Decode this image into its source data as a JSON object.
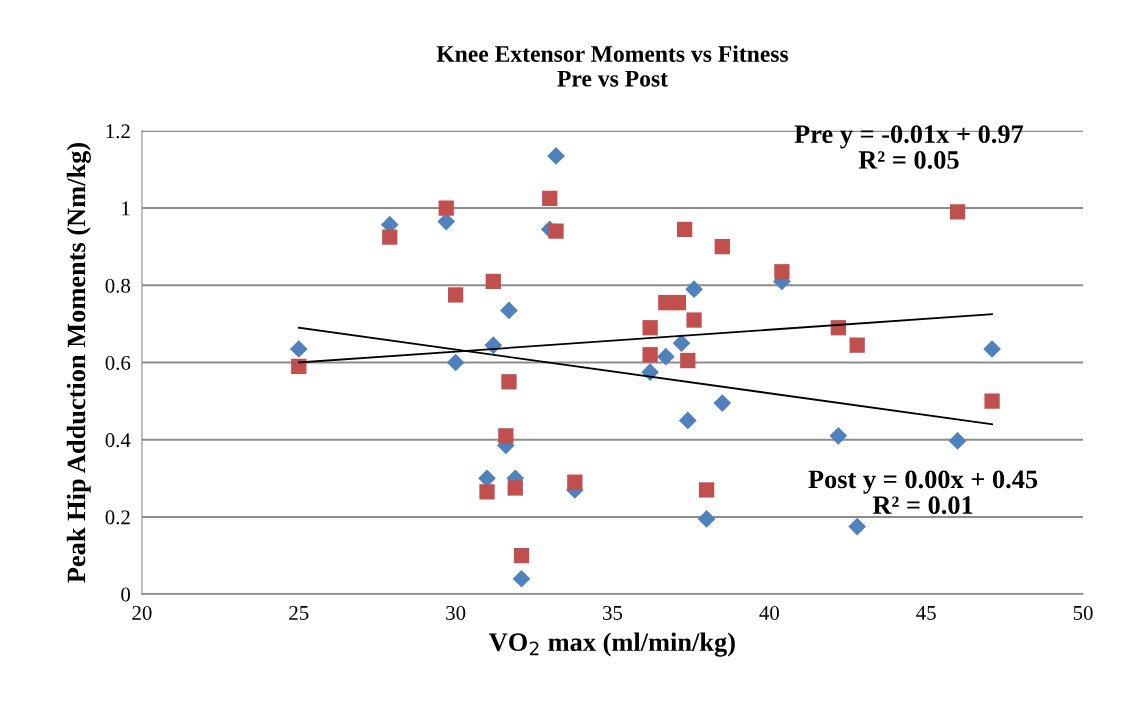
{
  "chart_data": {
    "type": "scatter",
    "title": "Knee Extensor Moments vs Fitness\nPre vs Post",
    "xlabel": "VO$_{2}$ max (ml/min/kg)",
    "ylabel": "Peak Hip Adduction Moments (Nm/kg)",
    "xlim": [
      20,
      50
    ],
    "xticks": [
      20,
      25,
      30,
      35,
      40,
      45,
      50
    ],
    "ylim": [
      0,
      1.2
    ],
    "yticks": [
      0,
      0.2,
      0.4,
      0.6,
      0.8,
      1,
      1.2
    ],
    "grid": "y",
    "legend": false,
    "series": [
      {
        "color": "#4f81bd",
        "marker": "diamond",
        "x": [
          25.0,
          27.9,
          29.7,
          30.0,
          31.2,
          31.7,
          31.6,
          31.0,
          31.9,
          32.1,
          33.0,
          33.2,
          33.8,
          36.2,
          36.7,
          37.2,
          37.6,
          37.4,
          38.5,
          38.0,
          40.4,
          42.2,
          46.0,
          47.1,
          42.8
        ],
        "values": [
          0.635,
          0.957,
          0.965,
          0.6,
          0.645,
          0.735,
          0.385,
          0.3,
          0.3,
          0.04,
          0.945,
          1.135,
          0.27,
          0.575,
          0.615,
          0.65,
          0.79,
          0.45,
          0.495,
          0.195,
          0.81,
          0.41,
          0.397,
          0.635,
          0.175
        ]
      },
      {
        "color": "#c0504d",
        "marker": "square",
        "x": [
          25.0,
          27.9,
          29.7,
          30.0,
          31.2,
          31.7,
          31.6,
          31.0,
          31.9,
          32.1,
          33.0,
          33.2,
          33.8,
          36.2,
          36.2,
          36.7,
          37.1,
          37.6,
          37.4,
          37.3,
          38.5,
          38.0,
          40.4,
          42.2,
          42.8,
          46.0,
          47.1
        ],
        "values": [
          0.59,
          0.925,
          1.0,
          0.775,
          0.81,
          0.55,
          0.41,
          0.265,
          0.275,
          0.1,
          1.025,
          0.94,
          0.29,
          0.69,
          0.62,
          0.755,
          0.755,
          0.71,
          0.605,
          0.945,
          0.9,
          0.27,
          0.835,
          0.69,
          0.645,
          0.99,
          0.5
        ]
      },
      {
        "type": "line",
        "color": "#000000",
        "marker": "none",
        "x": [
          25.0,
          47.1
        ],
        "values": [
          0.69,
          0.44
        ]
      },
      {
        "type": "line",
        "color": "#000000",
        "marker": "none",
        "x": [
          25.0,
          47.1
        ],
        "values": [
          0.6,
          0.725
        ]
      }
    ],
    "annotations": [
      "Pre y = -0.01x + 0.97\nR² = 0.05",
      "Post y = 0.00x + 0.45\nR² = 0.01"
    ]
  }
}
